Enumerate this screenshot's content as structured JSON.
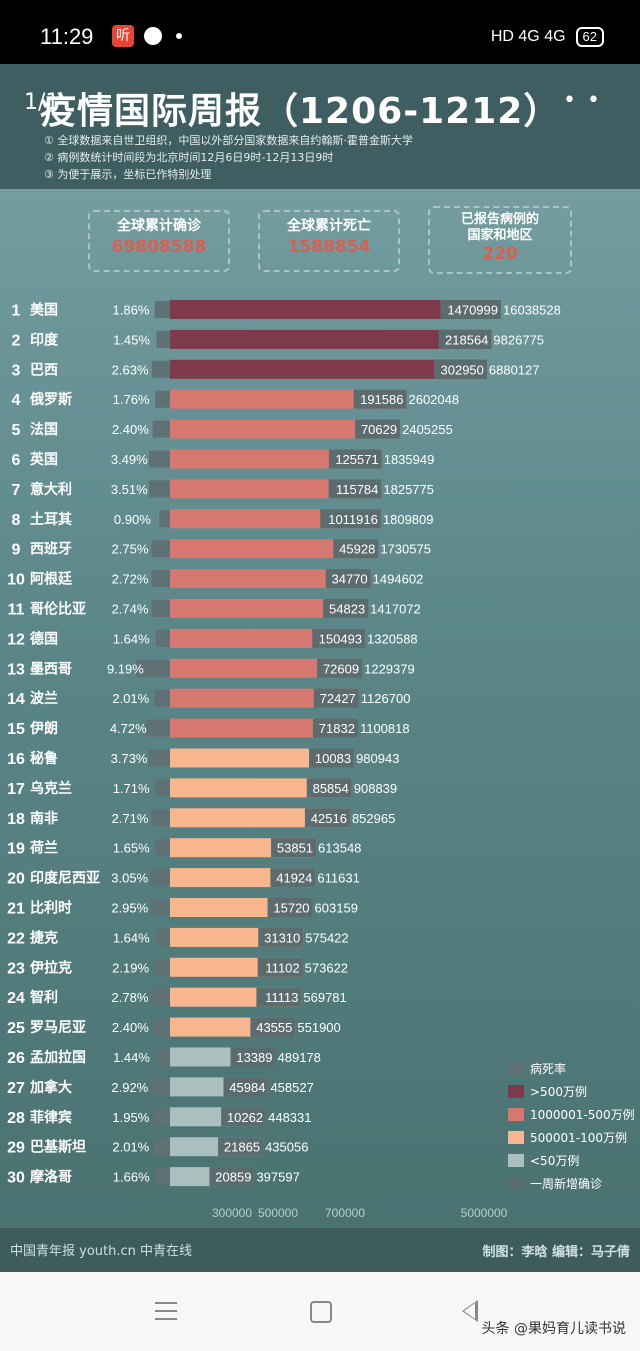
{
  "status_bar": {
    "time": "11:29",
    "app_badge": "听",
    "indicators": "HD 4G 4G",
    "battery": "62"
  },
  "header": {
    "page_indicator": "1/1",
    "title": "疫情国际周报（1206-1212）",
    "more": "• •",
    "notes": [
      "① 全球数据来自世卫组织，中国以外部分国家数据来自约翰斯·霍普金斯大学",
      "② 病例数统计时间段为北京时间12月6日9时-12月13日9时",
      "③ 为便于展示，坐标已作特别处理"
    ]
  },
  "stats": [
    {
      "label": "全球累计确诊",
      "value": "69808588"
    },
    {
      "label": "全球累计死亡",
      "value": "1588854"
    },
    {
      "label": "已报告病例的\n国家和地区",
      "value": "220"
    }
  ],
  "colors": {
    "death_rate": "#5f7174",
    "over_5m": "#7e3a4a",
    "1m_5m": "#d77870",
    "500k_1m": "#f7b68d",
    "under_500k": "#a9c0bf",
    "weekly_new": "#5c6c6e"
  },
  "chart_data": {
    "type": "bar",
    "x_ticks": [
      "300000",
      "500000",
      "700000",
      "5000000"
    ],
    "legend": [
      {
        "label": "病死率",
        "color": "#5f7174"
      },
      {
        "label": ">500万例",
        "color": "#7e3a4a"
      },
      {
        "label": "1000001-500万例",
        "color": "#d77870"
      },
      {
        "label": "500001-100万例",
        "color": "#f7b68d"
      },
      {
        "label": "<50万例",
        "color": "#a9c0bf"
      },
      {
        "label": "一周新增确诊",
        "color": "#5c6c6e"
      }
    ],
    "rows": [
      {
        "rank": "1",
        "country": "美国",
        "death_rate": "1.86%",
        "weekly_new": 1470999,
        "weekly_new_label": "1470999",
        "cumulative": 16038528,
        "cumulative_label": "16038528",
        "tier": "over_5m"
      },
      {
        "rank": "2",
        "country": "印度",
        "death_rate": "1.45%",
        "weekly_new": 218564,
        "weekly_new_label": "218564",
        "cumulative": 9826775,
        "cumulative_label": "9826775",
        "tier": "over_5m"
      },
      {
        "rank": "3",
        "country": "巴西",
        "death_rate": "2.63%",
        "weekly_new": 302950,
        "weekly_new_label": "302950",
        "cumulative": 6880127,
        "cumulative_label": "6880127",
        "tier": "over_5m"
      },
      {
        "rank": "4",
        "country": "俄罗斯",
        "death_rate": "1.76%",
        "weekly_new": 191586,
        "weekly_new_label": "191586",
        "cumulative": 2602048,
        "cumulative_label": "2602048",
        "tier": "1m_5m"
      },
      {
        "rank": "5",
        "country": "法国",
        "death_rate": "2.40%",
        "weekly_new": 70629,
        "weekly_new_label": "70629",
        "cumulative": 2405255,
        "cumulative_label": "2405255",
        "tier": "1m_5m"
      },
      {
        "rank": "6",
        "country": "英国",
        "death_rate": "3.49%",
        "weekly_new": 125571,
        "weekly_new_label": "125571",
        "cumulative": 1835949,
        "cumulative_label": "1835949",
        "tier": "1m_5m"
      },
      {
        "rank": "7",
        "country": "意大利",
        "death_rate": "3.51%",
        "weekly_new": 115784,
        "weekly_new_label": "115784",
        "cumulative": 1825775,
        "cumulative_label": "1825775",
        "tier": "1m_5m"
      },
      {
        "rank": "8",
        "country": "土耳其",
        "death_rate": "0.90%",
        "weekly_new": 1011916,
        "weekly_new_label": "1011916",
        "cumulative": 1809809,
        "cumulative_label": "1809809",
        "tier": "1m_5m"
      },
      {
        "rank": "9",
        "country": "西班牙",
        "death_rate": "2.75%",
        "weekly_new": 45928,
        "weekly_new_label": "45928",
        "cumulative": 1730575,
        "cumulative_label": "1730575",
        "tier": "1m_5m"
      },
      {
        "rank": "10",
        "country": "阿根廷",
        "death_rate": "2.72%",
        "weekly_new": 34770,
        "weekly_new_label": "34770",
        "cumulative": 1494602,
        "cumulative_label": "1494602",
        "tier": "1m_5m"
      },
      {
        "rank": "11",
        "country": "哥伦比亚",
        "death_rate": "2.74%",
        "weekly_new": 54823,
        "weekly_new_label": "54823",
        "cumulative": 1417072,
        "cumulative_label": "1417072",
        "tier": "1m_5m"
      },
      {
        "rank": "12",
        "country": "德国",
        "death_rate": "1.64%",
        "weekly_new": 150493,
        "weekly_new_label": "150493",
        "cumulative": 1320588,
        "cumulative_label": "1320588",
        "tier": "1m_5m"
      },
      {
        "rank": "13",
        "country": "墨西哥",
        "death_rate": "9.19%",
        "weekly_new": 72609,
        "weekly_new_label": "72609",
        "cumulative": 1229379,
        "cumulative_label": "1229379",
        "tier": "1m_5m"
      },
      {
        "rank": "14",
        "country": "波兰",
        "death_rate": "2.01%",
        "weekly_new": 72427,
        "weekly_new_label": "72427",
        "cumulative": 1126700,
        "cumulative_label": "1126700",
        "tier": "1m_5m"
      },
      {
        "rank": "15",
        "country": "伊朗",
        "death_rate": "4.72%",
        "weekly_new": 71832,
        "weekly_new_label": "71832",
        "cumulative": 1100818,
        "cumulative_label": "1100818",
        "tier": "1m_5m"
      },
      {
        "rank": "16",
        "country": "秘鲁",
        "death_rate": "3.73%",
        "weekly_new": 10083,
        "weekly_new_label": "10083",
        "cumulative": 980943,
        "cumulative_label": "980943",
        "tier": "500k_1m"
      },
      {
        "rank": "17",
        "country": "乌克兰",
        "death_rate": "1.71%",
        "weekly_new": 85854,
        "weekly_new_label": "85854",
        "cumulative": 908839,
        "cumulative_label": "908839",
        "tier": "500k_1m"
      },
      {
        "rank": "18",
        "country": "南非",
        "death_rate": "2.71%",
        "weekly_new": 42516,
        "weekly_new_label": "42516",
        "cumulative": 852965,
        "cumulative_label": "852965",
        "tier": "500k_1m"
      },
      {
        "rank": "19",
        "country": "荷兰",
        "death_rate": "1.65%",
        "weekly_new": 53851,
        "weekly_new_label": "53851",
        "cumulative": 613548,
        "cumulative_label": "613548",
        "tier": "500k_1m"
      },
      {
        "rank": "20",
        "country": "印度尼西亚",
        "death_rate": "3.05%",
        "weekly_new": 41924,
        "weekly_new_label": "41924",
        "cumulative": 611631,
        "cumulative_label": "611631",
        "tier": "500k_1m"
      },
      {
        "rank": "21",
        "country": "比利时",
        "death_rate": "2.95%",
        "weekly_new": 15720,
        "weekly_new_label": "15720",
        "cumulative": 603159,
        "cumulative_label": "603159",
        "tier": "500k_1m"
      },
      {
        "rank": "22",
        "country": "捷克",
        "death_rate": "1.64%",
        "weekly_new": 31310,
        "weekly_new_label": "31310",
        "cumulative": 575422,
        "cumulative_label": "575422",
        "tier": "500k_1m"
      },
      {
        "rank": "23",
        "country": "伊拉克",
        "death_rate": "2.19%",
        "weekly_new": 11102,
        "weekly_new_label": "11102",
        "cumulative": 573622,
        "cumulative_label": "573622",
        "tier": "500k_1m"
      },
      {
        "rank": "24",
        "country": "智利",
        "death_rate": "2.78%",
        "weekly_new": 11113,
        "weekly_new_label": "11113",
        "cumulative": 569781,
        "cumulative_label": "569781",
        "tier": "500k_1m"
      },
      {
        "rank": "25",
        "country": "罗马尼亚",
        "death_rate": "2.40%",
        "weekly_new": 43555,
        "weekly_new_label": "43555",
        "cumulative": 551900,
        "cumulative_label": "551900",
        "tier": "500k_1m"
      },
      {
        "rank": "26",
        "country": "孟加拉国",
        "death_rate": "1.44%",
        "weekly_new": 13389,
        "weekly_new_label": "13389",
        "cumulative": 489178,
        "cumulative_label": "489178",
        "tier": "under_500k"
      },
      {
        "rank": "27",
        "country": "加拿大",
        "death_rate": "2.92%",
        "weekly_new": 45984,
        "weekly_new_label": "45984",
        "cumulative": 458527,
        "cumulative_label": "458527",
        "tier": "under_500k"
      },
      {
        "rank": "28",
        "country": "菲律宾",
        "death_rate": "1.95%",
        "weekly_new": 10262,
        "weekly_new_label": "10262",
        "cumulative": 448331,
        "cumulative_label": "448331",
        "tier": "under_500k"
      },
      {
        "rank": "29",
        "country": "巴基斯坦",
        "death_rate": "2.01%",
        "weekly_new": 21865,
        "weekly_new_label": "21865",
        "cumulative": 435056,
        "cumulative_label": "435056",
        "tier": "under_500k"
      },
      {
        "rank": "30",
        "country": "摩洛哥",
        "death_rate": "1.66%",
        "weekly_new": 20859,
        "weekly_new_label": "20859",
        "cumulative": 397597,
        "cumulative_label": "397597",
        "tier": "under_500k"
      }
    ]
  },
  "footer": {
    "logos": "中国青年报  youth.cn  中青在线",
    "credits": "制图：李晗   编辑：马子倩"
  },
  "watermark": "头条 @果妈育儿读书说"
}
